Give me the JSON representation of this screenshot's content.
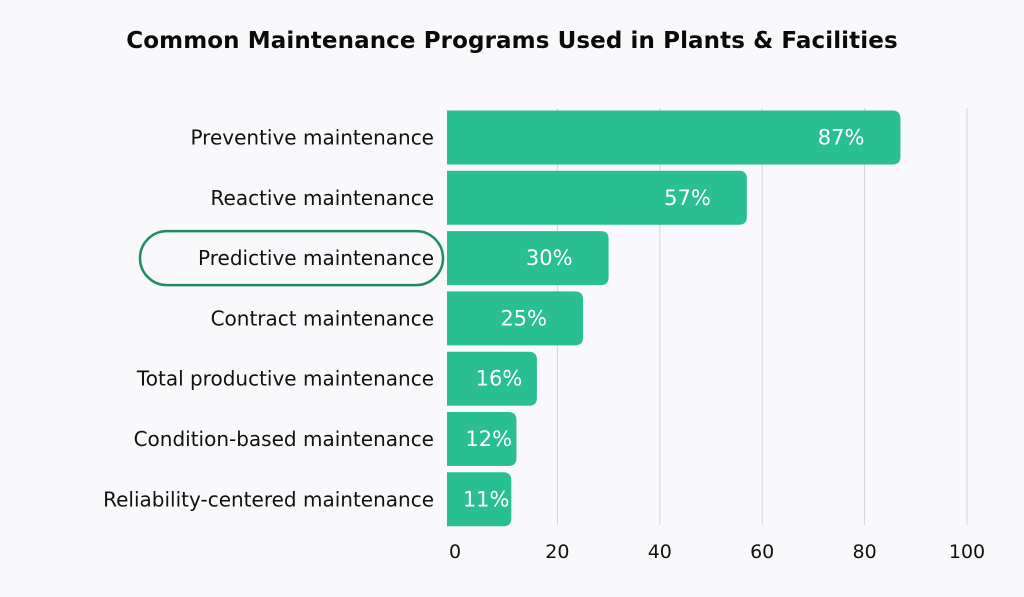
{
  "chart_data": {
    "type": "bar",
    "orientation": "horizontal",
    "title": "Common Maintenance Programs Used in Plants & Facilities",
    "categories": [
      "Preventive maintenance",
      "Reactive maintenance",
      "Predictive maintenance",
      "Contract maintenance",
      "Total productive maintenance",
      "Condition-based maintenance",
      "Reliability-centered maintenance"
    ],
    "values": [
      87,
      57,
      30,
      25,
      16,
      12,
      11
    ],
    "value_labels": [
      "87%",
      "57%",
      "30%",
      "25%",
      "16%",
      "12%",
      "11%"
    ],
    "highlighted_category": "Predictive maintenance",
    "xlim": [
      0,
      100
    ],
    "xticks": [
      0,
      20,
      40,
      60,
      80,
      100
    ],
    "xlabel": "",
    "ylabel": "",
    "grid": "vertical",
    "colors": {
      "bar": "#2abf91",
      "highlight_outline": "#1f8a66",
      "grid": "#d4d4d8",
      "bar_label": "#ffffff",
      "text": "#111111"
    }
  }
}
